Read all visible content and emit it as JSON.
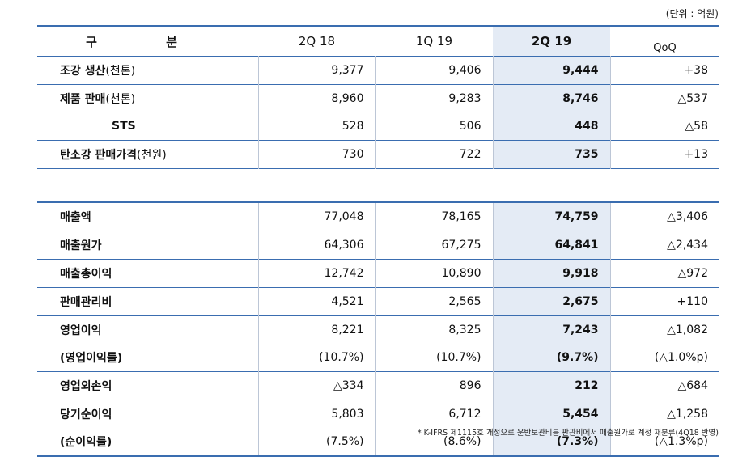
{
  "unit_note": "(단위 : 억원)",
  "header": {
    "label": "구 분",
    "cols": [
      "2Q 18",
      "1Q 19",
      "2Q 19"
    ],
    "qoq": "QoQ"
  },
  "rows_top": [
    {
      "label": "조강 생산",
      "sub": "(천톤)",
      "v": [
        "9,377",
        "9,406",
        "9,444"
      ],
      "qoq": "+38"
    },
    {
      "label": "제품 판매",
      "sub": "(천톤)",
      "v": [
        "8,960",
        "9,283",
        "8,746"
      ],
      "qoq": "△537"
    },
    {
      "label": "STS",
      "sub": "",
      "v": [
        "528",
        "506",
        "448"
      ],
      "qoq": "△58"
    },
    {
      "label": "탄소강 판매가격",
      "sub": "(천원)",
      "v": [
        "730",
        "722",
        "735"
      ],
      "qoq": "+13"
    }
  ],
  "rows_bottom": [
    {
      "label": "매출액",
      "v": [
        "77,048",
        "78,165",
        "74,759"
      ],
      "qoq": "△3,406"
    },
    {
      "label": "매출원가",
      "v": [
        "64,306",
        "67,275",
        "64,841"
      ],
      "qoq": "△2,434"
    },
    {
      "label": "매출총이익",
      "v": [
        "12,742",
        "10,890",
        "9,918"
      ],
      "qoq": "△972"
    },
    {
      "label": "판매관리비",
      "v": [
        "4,521",
        "2,565",
        "2,675"
      ],
      "qoq": "+110"
    },
    {
      "label": "영업이익",
      "v": [
        "8,221",
        "8,325",
        "7,243"
      ],
      "qoq": "△1,082"
    },
    {
      "label": "(영업이익률)",
      "v": [
        "(10.7%)",
        "(10.7%)",
        "(9.7%)"
      ],
      "qoq": "(△1.0%p)"
    },
    {
      "label": "영업외손익",
      "v": [
        "△334",
        "896",
        "212"
      ],
      "qoq": "△684"
    },
    {
      "label": "당기순이익",
      "v": [
        "5,803",
        "6,712",
        "5,454"
      ],
      "qoq": "△1,258"
    },
    {
      "label": "(순이익률)",
      "v": [
        "(7.5%)",
        "(8.6%)",
        "(7.3%)"
      ],
      "qoq": "(△1.3%p)"
    }
  ],
  "footnote": "* K-IFRS 제1115호 개정으로 운반보관비를 판관비에서 매출원가로 계정 재분류(4Q18 반영)",
  "colors": {
    "rule": "#3a6db0",
    "highlight": "#e4ebf5"
  }
}
